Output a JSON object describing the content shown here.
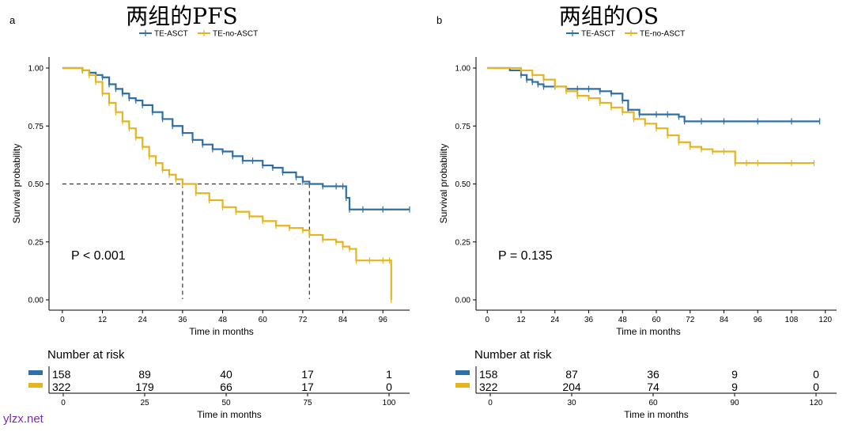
{
  "watermark": "ylzx.net",
  "colors": {
    "te_asct": "#2e6fa8",
    "te_no_asct": "#e3b521",
    "axis": "#000000",
    "ref_line": "#333333"
  },
  "chart_data": [
    {
      "type": "line",
      "panel_label": "a",
      "title": "两组的PFS",
      "xlabel": "Time in months",
      "ylabel": "Survival probability",
      "xlim": [
        -4,
        104
      ],
      "ylim": [
        0,
        1
      ],
      "xticks": [
        0,
        12,
        24,
        36,
        48,
        60,
        72,
        84,
        96
      ],
      "yticks": [
        "0.00",
        "0.25",
        "0.50",
        "0.75",
        "1.00"
      ],
      "grid": false,
      "legend_position": "top",
      "p_value": "P < 0.001",
      "median_lines": {
        "y": 0.5,
        "x": [
          36,
          74
        ]
      },
      "series": [
        {
          "name": "TE-ASCT",
          "x": [
            0,
            2,
            4,
            6,
            8,
            10,
            12,
            14,
            16,
            18,
            20,
            22,
            24,
            27,
            30,
            33,
            36,
            39,
            42,
            45,
            48,
            51,
            54,
            57,
            60,
            63,
            66,
            70,
            72,
            74,
            78,
            82,
            84,
            85,
            86,
            90,
            96,
            104
          ],
          "y": [
            1.0,
            1.0,
            1.0,
            0.99,
            0.98,
            0.97,
            0.96,
            0.93,
            0.91,
            0.89,
            0.87,
            0.86,
            0.84,
            0.81,
            0.78,
            0.75,
            0.72,
            0.69,
            0.67,
            0.65,
            0.64,
            0.62,
            0.6,
            0.6,
            0.58,
            0.57,
            0.55,
            0.53,
            0.51,
            0.5,
            0.49,
            0.49,
            0.49,
            0.44,
            0.39,
            0.39,
            0.39,
            0.39
          ]
        },
        {
          "name": "TE-no-ASCT",
          "x": [
            0,
            2,
            4,
            6,
            8,
            10,
            12,
            14,
            16,
            18,
            20,
            22,
            24,
            26,
            28,
            30,
            32,
            34,
            36,
            40,
            44,
            48,
            52,
            56,
            60,
            64,
            68,
            72,
            74,
            78,
            82,
            84,
            86,
            88,
            92,
            96,
            98,
            98.5
          ],
          "y": [
            1.0,
            1.0,
            1.0,
            0.99,
            0.97,
            0.94,
            0.89,
            0.85,
            0.81,
            0.77,
            0.74,
            0.7,
            0.66,
            0.62,
            0.59,
            0.56,
            0.54,
            0.52,
            0.5,
            0.46,
            0.43,
            0.4,
            0.38,
            0.36,
            0.34,
            0.32,
            0.31,
            0.3,
            0.28,
            0.26,
            0.25,
            0.23,
            0.22,
            0.17,
            0.17,
            0.17,
            0.17,
            0.0
          ]
        }
      ],
      "risk_table": {
        "title": "Number at risk",
        "ticks": [
          0,
          25,
          50,
          75,
          100
        ],
        "xlabel": "Time in months",
        "rows": [
          {
            "name": "TE-ASCT",
            "values": [
              "158",
              "89",
              "40",
              "17",
              "1"
            ]
          },
          {
            "name": "TE-no-ASCT",
            "values": [
              "322",
              "179",
              "66",
              "17",
              "0"
            ]
          }
        ]
      }
    },
    {
      "type": "line",
      "panel_label": "b",
      "title": "两组的OS",
      "xlabel": "Time in months",
      "ylabel": "Survival probability",
      "xlim": [
        -4,
        124
      ],
      "ylim": [
        0,
        1
      ],
      "xticks": [
        0,
        12,
        24,
        36,
        48,
        60,
        72,
        84,
        96,
        108,
        120
      ],
      "yticks": [
        "0.00",
        "0.25",
        "0.50",
        "0.75",
        "1.00"
      ],
      "grid": false,
      "legend_position": "top",
      "p_value": "P = 0.135",
      "series": [
        {
          "name": "TE-ASCT",
          "x": [
            0,
            4,
            8,
            12,
            14,
            16,
            18,
            20,
            24,
            28,
            32,
            36,
            40,
            44,
            48,
            50,
            54,
            60,
            64,
            68,
            70,
            76,
            84,
            96,
            108,
            118
          ],
          "y": [
            1.0,
            1.0,
            0.99,
            0.97,
            0.95,
            0.94,
            0.93,
            0.92,
            0.92,
            0.91,
            0.91,
            0.91,
            0.9,
            0.89,
            0.86,
            0.82,
            0.8,
            0.8,
            0.8,
            0.79,
            0.77,
            0.77,
            0.77,
            0.77,
            0.77,
            0.77
          ]
        },
        {
          "name": "TE-no-ASCT",
          "x": [
            0,
            4,
            8,
            12,
            16,
            20,
            24,
            28,
            32,
            36,
            40,
            44,
            48,
            52,
            56,
            60,
            64,
            68,
            72,
            76,
            80,
            84,
            88,
            92,
            96,
            108,
            116
          ],
          "y": [
            1.0,
            1.0,
            1.0,
            0.99,
            0.97,
            0.95,
            0.92,
            0.9,
            0.88,
            0.87,
            0.85,
            0.83,
            0.81,
            0.78,
            0.76,
            0.74,
            0.71,
            0.68,
            0.66,
            0.65,
            0.64,
            0.64,
            0.59,
            0.59,
            0.59,
            0.59,
            0.59
          ]
        }
      ],
      "risk_table": {
        "title": "Number at risk",
        "ticks": [
          0,
          30,
          60,
          90,
          120
        ],
        "xlabel": "Time in months",
        "rows": [
          {
            "name": "TE-ASCT",
            "values": [
              "158",
              "87",
              "36",
              "9",
              "0"
            ]
          },
          {
            "name": "TE-no-ASCT",
            "values": [
              "322",
              "204",
              "74",
              "9",
              "0"
            ]
          }
        ]
      }
    }
  ]
}
